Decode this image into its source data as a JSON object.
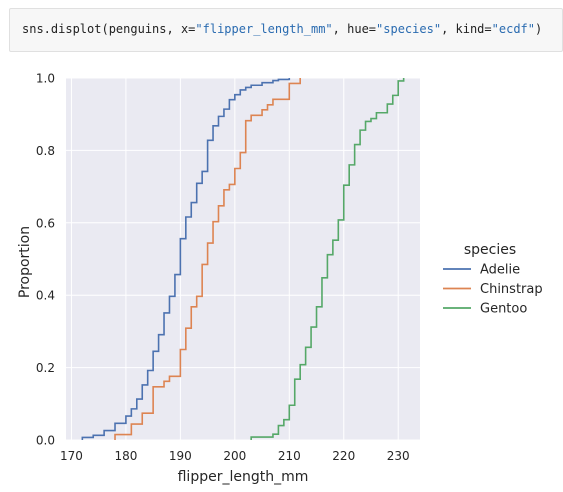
{
  "code": {
    "prefix": "sns.displot(penguins, x=",
    "arg_x": "\"flipper_length_mm\"",
    "sep1": ", hue=",
    "arg_hue": "\"species\"",
    "sep2": ", kind=",
    "arg_kind": "\"ecdf\"",
    "suffix": ")"
  },
  "colors": {
    "plot_bg": "#eaeaf2",
    "grid": "#ffffff",
    "Adelie": "#4c72b0",
    "Chinstrap": "#dd8452",
    "Gentoo": "#55a868"
  },
  "chart_data": {
    "type": "line",
    "subtype": "ecdf",
    "xlabel": "flipper_length_mm",
    "ylabel": "Proportion",
    "xlim": [
      169,
      234
    ],
    "ylim": [
      0,
      1
    ],
    "x_ticks": [
      "170",
      "180",
      "190",
      "200",
      "210",
      "220",
      "230"
    ],
    "y_ticks": [
      "0.0",
      "0.2",
      "0.4",
      "0.6",
      "0.8",
      "1.0"
    ],
    "grid": true,
    "legend_title": "species",
    "legend_position": "right",
    "series": [
      {
        "name": "Adelie",
        "x": [
          172,
          174,
          176,
          178,
          180,
          181,
          182,
          183,
          184,
          185,
          186,
          187,
          188,
          189,
          190,
          191,
          192,
          193,
          194,
          195,
          196,
          197,
          198,
          199,
          200,
          201,
          202,
          203,
          205,
          207,
          208,
          210
        ],
        "y": [
          0.007,
          0.013,
          0.026,
          0.046,
          0.066,
          0.086,
          0.113,
          0.152,
          0.192,
          0.245,
          0.291,
          0.351,
          0.397,
          0.457,
          0.556,
          0.616,
          0.656,
          0.709,
          0.742,
          0.828,
          0.868,
          0.894,
          0.914,
          0.94,
          0.954,
          0.967,
          0.974,
          0.98,
          0.987,
          0.993,
          0.996,
          1.0
        ]
      },
      {
        "name": "Chinstrap",
        "x": [
          178,
          181,
          183,
          185,
          187,
          188,
          190,
          191,
          192,
          193,
          194,
          195,
          196,
          197,
          198,
          199,
          200,
          201,
          202,
          203,
          205,
          206,
          207,
          210,
          212
        ],
        "y": [
          0.015,
          0.044,
          0.074,
          0.147,
          0.162,
          0.176,
          0.25,
          0.309,
          0.368,
          0.397,
          0.485,
          0.544,
          0.603,
          0.647,
          0.691,
          0.706,
          0.75,
          0.794,
          0.882,
          0.897,
          0.912,
          0.926,
          0.941,
          0.985,
          1.0
        ]
      },
      {
        "name": "Gentoo",
        "x": [
          203,
          207,
          208,
          209,
          210,
          211,
          212,
          213,
          214,
          215,
          216,
          217,
          218,
          219,
          220,
          221,
          222,
          223,
          224,
          225,
          226,
          228,
          229,
          230,
          231
        ],
        "y": [
          0.008,
          0.016,
          0.04,
          0.056,
          0.096,
          0.168,
          0.208,
          0.256,
          0.312,
          0.368,
          0.448,
          0.512,
          0.552,
          0.608,
          0.704,
          0.76,
          0.816,
          0.856,
          0.88,
          0.888,
          0.904,
          0.928,
          0.952,
          0.992,
          1.0
        ]
      }
    ]
  }
}
